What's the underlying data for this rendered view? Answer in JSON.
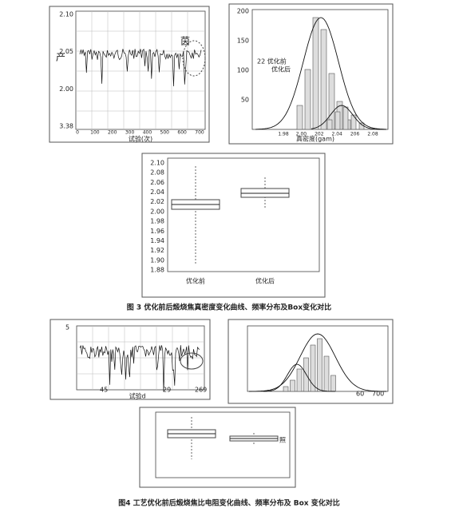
{
  "figure3": {
    "panel_a": {
      "yticks": [
        "2.10",
        "2.05",
        "2.00",
        "3.38"
      ],
      "xticks": [
        "0",
        "100",
        "200",
        "300",
        "400",
        "500",
        "600",
        "700"
      ],
      "x_label": "试验(次)",
      "annotations": [
        "产",
        "茵"
      ]
    },
    "panel_b": {
      "yticks": [
        "200",
        "150",
        "100",
        "50"
      ],
      "legend": [
        "22 优化前",
        "优化后"
      ],
      "xticks": [
        "1.98",
        "2.00",
        "202",
        "2.04",
        "206",
        "2.08"
      ],
      "x_label": "真密度(gam)"
    },
    "panel_c": {
      "yticks": [
        "2.10",
        "2.08",
        "2.06",
        "2.04",
        "2.02",
        "2.00",
        "1.98",
        "1.96",
        "1.94",
        "1.92",
        "1.90",
        "1.88"
      ],
      "categories": [
        "优化前",
        "优化后"
      ]
    },
    "caption": "图 3  优化前后煅烧焦真密度变化曲线、频率分布及Box变化对比"
  },
  "figure4": {
    "panel_a": {
      "yticks": [
        "5"
      ],
      "xticks": [
        "45",
        "29",
        "269"
      ],
      "x_label": "试验d"
    },
    "panel_b": {
      "xticks": [
        "60",
        "700"
      ]
    },
    "panel_c": {
      "annotation": "照"
    },
    "caption": "图4  工艺优化前后煅烧焦比电阻变化曲线、频率分布及 Box 变化对比"
  }
}
